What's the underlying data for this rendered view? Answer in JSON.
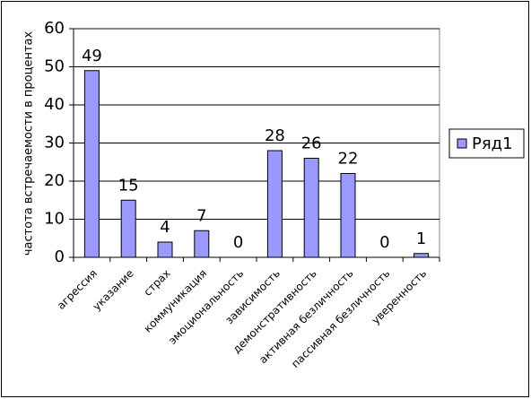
{
  "chart_data": {
    "type": "bar",
    "y_label": "частота встречаемости в процентах",
    "categories": [
      "агрессия",
      "указание",
      "страх",
      "коммуникация",
      "эмоциональность",
      "зависимость",
      "демонстративность",
      "активная безличность",
      "пассивная безличность",
      "уверенность"
    ],
    "series": [
      {
        "name": "Ряд1",
        "color": "#9999ff",
        "values": [
          49,
          15,
          4,
          7,
          0,
          28,
          26,
          22,
          0,
          1
        ]
      }
    ],
    "ylim": [
      0,
      60
    ],
    "yticks": [
      0,
      10,
      20,
      30,
      40,
      50,
      60
    ],
    "grid": true,
    "legend": "right"
  }
}
